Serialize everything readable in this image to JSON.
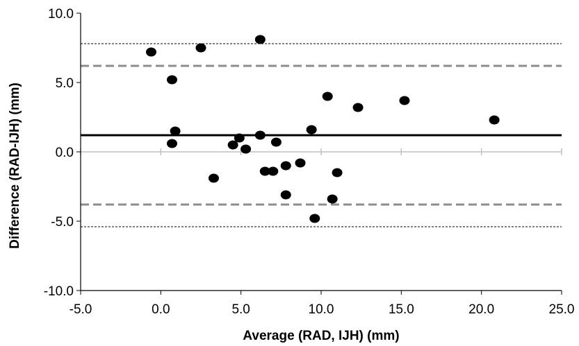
{
  "chart_data": {
    "type": "scatter",
    "title": "",
    "xlabel": "Average (RAD, IJH) (mm)",
    "ylabel": "Difference (RAD-IJH)  (mm)",
    "xlim": [
      -5.0,
      25.0
    ],
    "ylim": [
      -10.0,
      10.0
    ],
    "x_ticks": [
      -5.0,
      0.0,
      5.0,
      10.0,
      15.0,
      20.0,
      25.0
    ],
    "y_ticks": [
      -10.0,
      -5.0,
      0.0,
      5.0,
      10.0
    ],
    "x_tick_labels": [
      "-5.0",
      "0.0",
      "5.0",
      "10.0",
      "15.0",
      "20.0",
      "25.0"
    ],
    "y_tick_labels": [
      "-10.0",
      "-5.0",
      "0.0",
      "5.0",
      "10.0"
    ],
    "grid": false,
    "legend": "none",
    "points": [
      {
        "x": -0.6,
        "y": 7.2
      },
      {
        "x": 0.7,
        "y": 5.2
      },
      {
        "x": 0.9,
        "y": 1.5
      },
      {
        "x": 0.7,
        "y": 0.6
      },
      {
        "x": 2.5,
        "y": 7.5
      },
      {
        "x": 3.3,
        "y": -1.9
      },
      {
        "x": 4.5,
        "y": 0.5
      },
      {
        "x": 4.9,
        "y": 1.0
      },
      {
        "x": 5.3,
        "y": 0.2
      },
      {
        "x": 6.2,
        "y": 8.1
      },
      {
        "x": 6.2,
        "y": 1.2
      },
      {
        "x": 6.5,
        "y": -1.4
      },
      {
        "x": 7.0,
        "y": -1.4
      },
      {
        "x": 7.2,
        "y": 0.7
      },
      {
        "x": 7.8,
        "y": -1.0
      },
      {
        "x": 7.8,
        "y": -3.1
      },
      {
        "x": 8.7,
        "y": -0.8
      },
      {
        "x": 9.4,
        "y": 1.6
      },
      {
        "x": 9.6,
        "y": -4.8
      },
      {
        "x": 10.4,
        "y": 4.0
      },
      {
        "x": 10.7,
        "y": -3.4
      },
      {
        "x": 11.0,
        "y": -1.5
      },
      {
        "x": 12.3,
        "y": 3.2
      },
      {
        "x": 15.2,
        "y": 3.7
      },
      {
        "x": 20.8,
        "y": 2.3
      }
    ],
    "reference_lines": [
      {
        "y": 1.2,
        "style": "solid"
      },
      {
        "y": 6.2,
        "style": "dashed"
      },
      {
        "y": -3.8,
        "style": "dashed"
      },
      {
        "y": 7.8,
        "style": "dotted"
      },
      {
        "y": -5.4,
        "style": "dotted"
      }
    ],
    "colors": {
      "points": "#000000",
      "mean_line": "#000000",
      "limit_line": "#8c8c8c",
      "ci_line": "#000000",
      "axis": "#000000",
      "zero_axis": "#bfbfbf"
    }
  }
}
